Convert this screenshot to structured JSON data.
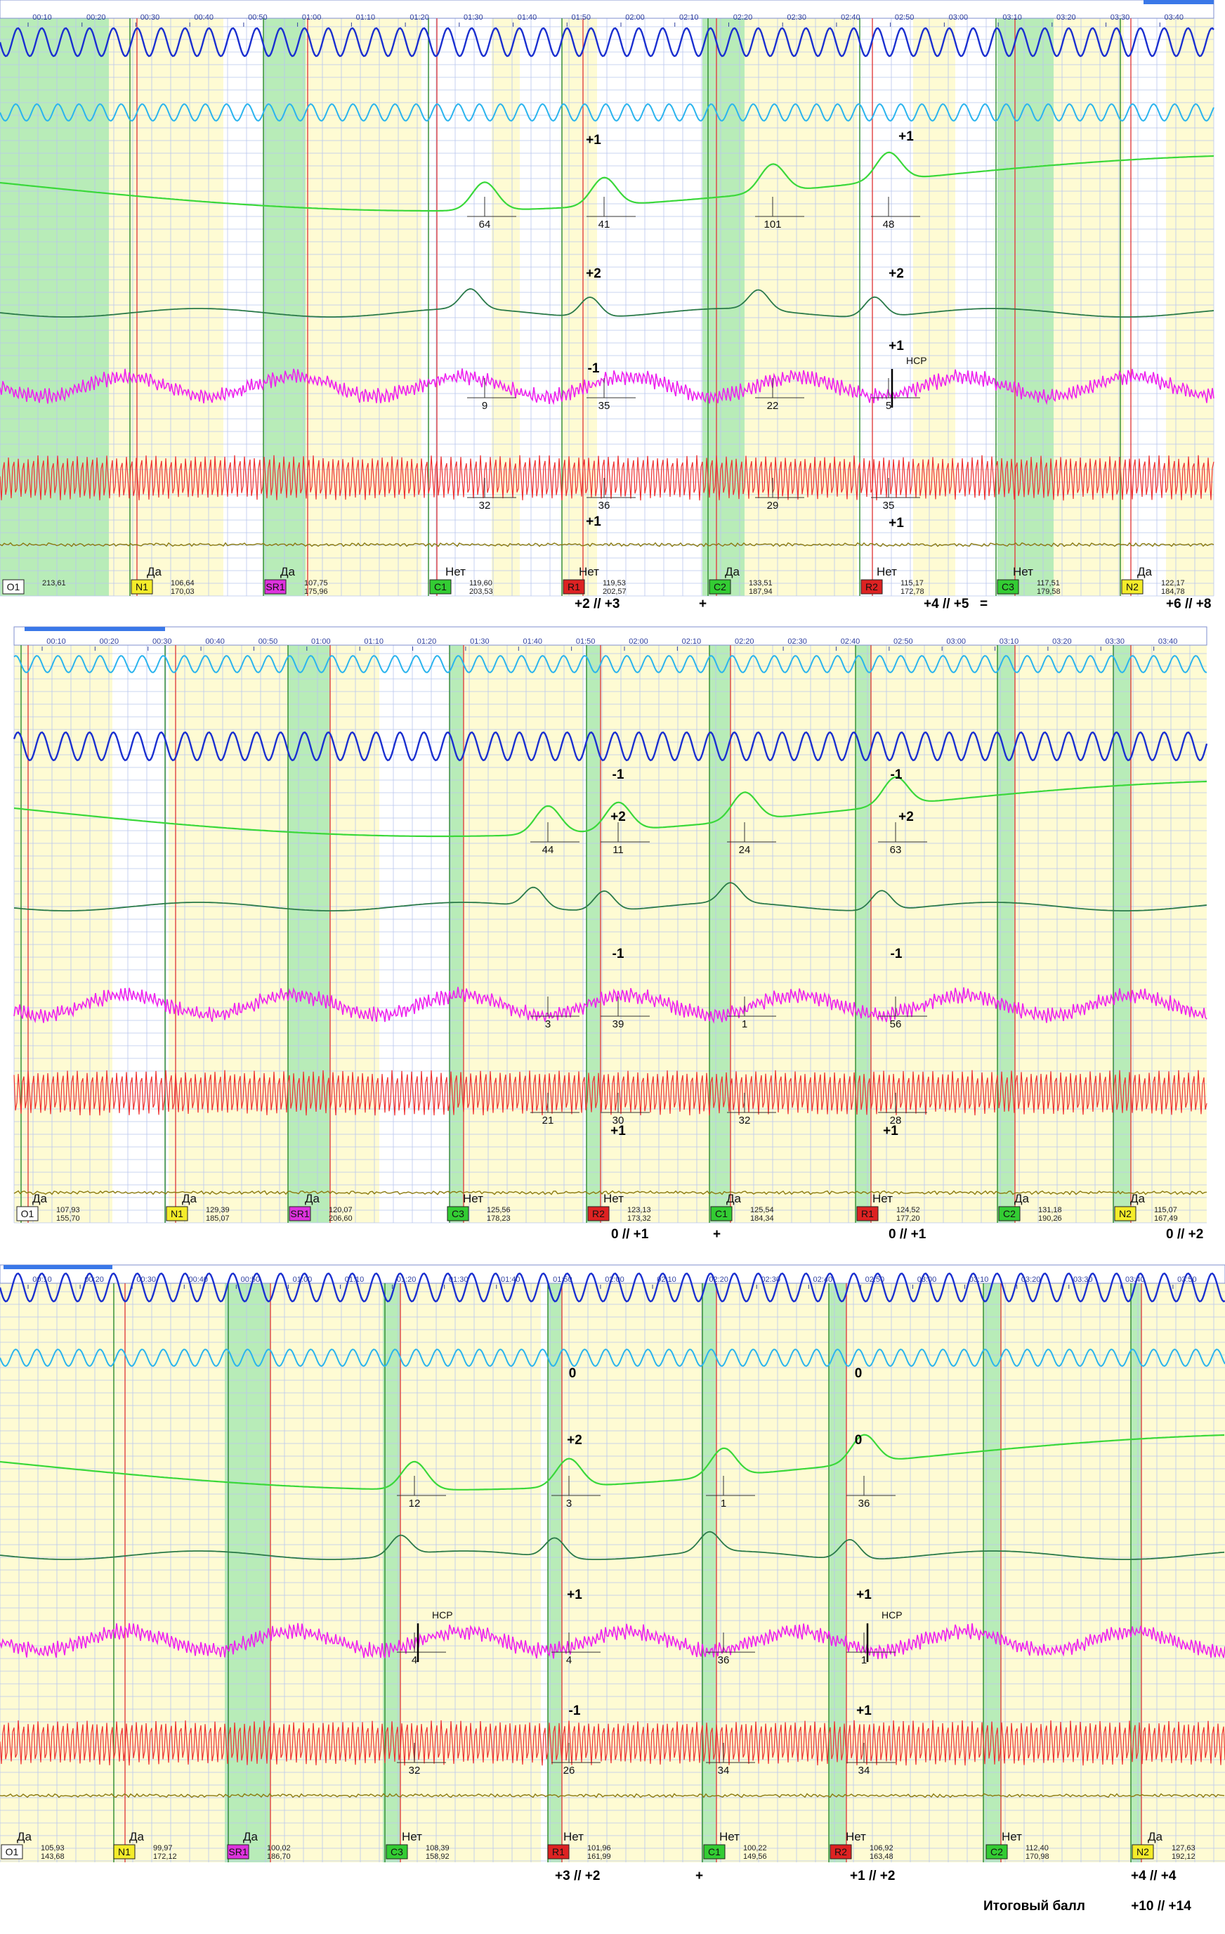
{
  "colors": {
    "yellow": "#fefbd3",
    "green": "#b8ecb8",
    "grid": "#b9c6ee",
    "vline_green": "#2c8a2c",
    "vline_red": "#e04040",
    "breath_dark": "#1a2fd0",
    "breath_light": "#2ab4ee",
    "gsr": "#3ad83a",
    "pleth": "#2a7a4a",
    "bp": "#ee22ee",
    "ekg": "#ee3030",
    "motion": "#8a7a10",
    "tag_N": "#f4ec2a",
    "tag_SR": "#dd33dd",
    "tag_C": "#33cc33",
    "tag_R": "#dd2222"
  },
  "chart_data": [
    {
      "type": "line",
      "time_ticks": [
        "00:10",
        "00:20",
        "00:30",
        "00:40",
        "00:50",
        "01:00",
        "01:10",
        "01:20",
        "01:30",
        "01:40",
        "01:50",
        "02:00",
        "02:10",
        "02:20",
        "02:30",
        "02:40",
        "02:50",
        "03:00",
        "03:10",
        "03:20",
        "03:30",
        "03:40"
      ],
      "questions": [
        {
          "tag": "O1",
          "answer": "",
          "v1": "213,61",
          "v2": ""
        },
        {
          "tag": "N1",
          "answer": "Да",
          "v1": "106,64",
          "v2": "170,03"
        },
        {
          "tag": "SR1",
          "answer": "Да",
          "v1": "107,75",
          "v2": "175,96"
        },
        {
          "tag": "C1",
          "answer": "Нет",
          "v1": "119,60",
          "v2": "203,53"
        },
        {
          "tag": "R1",
          "answer": "Нет",
          "v1": "119,53",
          "v2": "202,57"
        },
        {
          "tag": "C2",
          "answer": "Да",
          "v1": "133,51",
          "v2": "187,94"
        },
        {
          "tag": "R2",
          "answer": "Нет",
          "v1": "115,17",
          "v2": "172,78"
        },
        {
          "tag": "C3",
          "answer": "Нет",
          "v1": "117,51",
          "v2": "179,58"
        },
        {
          "tag": "N2",
          "answer": "Да",
          "v1": "122,17",
          "v2": "184,78"
        }
      ],
      "gsr_values": [
        "64",
        "41",
        "101",
        "48"
      ],
      "bp_values": [
        "9",
        "35",
        "22",
        "5"
      ],
      "ekg_values": [
        "32",
        "36",
        "29",
        "35"
      ],
      "scores": [
        "+1",
        "+1",
        "+2",
        "+2",
        "-1",
        "+1",
        "+1",
        "+1"
      ],
      "annotations": [
        "НСР"
      ],
      "bottom_scores": [
        "+2 // +3",
        "+",
        "+4 // +5",
        "=",
        "+6 // +8"
      ]
    },
    {
      "type": "line",
      "time_ticks": [
        "00:10",
        "00:20",
        "00:30",
        "00:40",
        "00:50",
        "01:00",
        "01:10",
        "01:20",
        "01:30",
        "01:40",
        "01:50",
        "02:00",
        "02:10",
        "02:20",
        "02:30",
        "02:40",
        "02:50",
        "03:00",
        "03:10",
        "03:20",
        "03:30",
        "03:40"
      ],
      "questions": [
        {
          "tag": "O1",
          "answer": "Да",
          "v1": "107,93",
          "v2": "155,70"
        },
        {
          "tag": "N1",
          "answer": "Да",
          "v1": "129,39",
          "v2": "185,07"
        },
        {
          "tag": "SR1",
          "answer": "Да",
          "v1": "120,07",
          "v2": "206,60"
        },
        {
          "tag": "C3",
          "answer": "Нет",
          "v1": "125,56",
          "v2": "178,23"
        },
        {
          "tag": "R2",
          "answer": "Нет",
          "v1": "123,13",
          "v2": "173,32"
        },
        {
          "tag": "C1",
          "answer": "Да",
          "v1": "125,54",
          "v2": "184,34"
        },
        {
          "tag": "R1",
          "answer": "Нет",
          "v1": "124,52",
          "v2": "177,20"
        },
        {
          "tag": "C2",
          "answer": "Да",
          "v1": "131,18",
          "v2": "190,26"
        },
        {
          "tag": "N2",
          "answer": "Да",
          "v1": "115,07",
          "v2": "167,49"
        }
      ],
      "gsr_values": [
        "44",
        "11",
        "24",
        "63"
      ],
      "bp_values": [
        "3",
        "39",
        "1",
        "56"
      ],
      "ekg_values": [
        "21",
        "30",
        "32",
        "28"
      ],
      "scores": [
        "-1",
        "-1",
        "+2",
        "+2",
        "-1",
        "-1",
        "+1",
        "+1"
      ],
      "annotations": [],
      "bottom_scores": [
        "0 // +1",
        "+",
        "0 // +1",
        "0 // +2"
      ]
    },
    {
      "type": "line",
      "time_ticks": [
        "00:10",
        "00:20",
        "00:30",
        "00:40",
        "00:50",
        "01:00",
        "01:10",
        "01:20",
        "01:30",
        "01:40",
        "01:50",
        "02:00",
        "02:10",
        "02:20",
        "02:30",
        "02:40",
        "02:50",
        "03:00",
        "03:10",
        "03:20",
        "03:30",
        "03:40",
        "03:50"
      ],
      "questions": [
        {
          "tag": "O1",
          "answer": "Да",
          "v1": "105,93",
          "v2": "143,68"
        },
        {
          "tag": "N1",
          "answer": "Да",
          "v1": "99,97",
          "v2": "172,12"
        },
        {
          "tag": "SR1",
          "answer": "Да",
          "v1": "100,02",
          "v2": "186,70"
        },
        {
          "tag": "C3",
          "answer": "Нет",
          "v1": "108,39",
          "v2": "158,92"
        },
        {
          "tag": "R1",
          "answer": "Нет",
          "v1": "101,96",
          "v2": "161,99"
        },
        {
          "tag": "C1",
          "answer": "Нет",
          "v1": "100,22",
          "v2": "149,56"
        },
        {
          "tag": "R2",
          "answer": "Нет",
          "v1": "106,92",
          "v2": "163,48"
        },
        {
          "tag": "C2",
          "answer": "Нет",
          "v1": "112,40",
          "v2": "170,98"
        },
        {
          "tag": "N2",
          "answer": "Да",
          "v1": "127,63",
          "v2": "192,12"
        }
      ],
      "gsr_values": [
        "12",
        "3",
        "1",
        "36"
      ],
      "bp_values": [
        "4",
        "4",
        "36",
        "1"
      ],
      "ekg_values": [
        "32",
        "26",
        "34",
        "34"
      ],
      "scores": [
        "0",
        "0",
        "+2",
        "0",
        "+1",
        "+1",
        "-1",
        "+1"
      ],
      "annotations": [
        "НСР",
        "НСР"
      ],
      "bottom_scores": [
        "+3 // +2",
        "+",
        "+1 // +2",
        "+4 // +4"
      ]
    }
  ],
  "final": {
    "label": "Итоговый балл",
    "value": "+10 // +14"
  }
}
